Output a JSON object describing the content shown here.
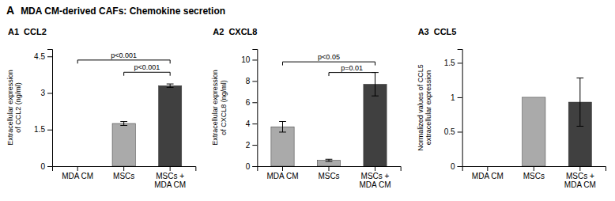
{
  "title": "MDA CM-derived CAFs: Chemokine secretion",
  "annotations": [
    "A"
  ],
  "chart_data": [
    {
      "type": "bar",
      "title": "A1",
      "subtitle": "CCL2",
      "categories": [
        "MDA CM",
        "MSCs",
        "MSCs +\nMDA CM"
      ],
      "values": [
        0.0,
        1.75,
        3.3
      ],
      "errors": [
        0.0,
        0.08,
        0.07
      ],
      "colors": [
        "#aaaaaa",
        "#aaaaaa",
        "#404040"
      ],
      "y_label": "Extracellular expression\nof CCL2 (ng/ml)",
      "ylim": [
        0,
        4.8
      ],
      "yticks": [
        0,
        1.5,
        3,
        4.5
      ],
      "annotations": [
        {
          "x1": 0,
          "x2": 2,
          "y": 4.35,
          "text": "p<0.001"
        },
        {
          "x1": 1,
          "x2": 2,
          "y": 3.85,
          "text": "p<0.001"
        }
      ]
    },
    {
      "type": "bar",
      "title": "A2",
      "subtitle": "CXCL8",
      "categories": [
        "MDA CM",
        "MSCs",
        "MSCs +\nMDA CM"
      ],
      "values": [
        3.7,
        0.55,
        7.7
      ],
      "errors": [
        0.5,
        0.1,
        1.1
      ],
      "colors": [
        "#aaaaaa",
        "#aaaaaa",
        "#404040"
      ],
      "y_label": "Extracellular expression\nof CXCL8 (ng/ml)",
      "ylim": [
        0,
        11
      ],
      "yticks": [
        0,
        2,
        4,
        6,
        8,
        10
      ],
      "annotations": [
        {
          "x1": 0,
          "x2": 2,
          "y": 9.8,
          "text": "p<0.05"
        },
        {
          "x1": 1,
          "x2": 2,
          "y": 8.8,
          "text": "p=0.01"
        }
      ]
    },
    {
      "type": "bar",
      "title": "A3",
      "subtitle": "CCL5",
      "categories": [
        "MDA CM",
        "MSCs",
        "MSCs +\nMDA CM"
      ],
      "values": [
        0.0,
        1.0,
        0.93
      ],
      "errors": [
        0.0,
        0.0,
        0.35
      ],
      "colors": [
        "#aaaaaa",
        "#aaaaaa",
        "#404040"
      ],
      "y_label": "Normalized values of CCL5\nextracellular expression",
      "ylim": [
        0,
        1.7
      ],
      "yticks": [
        0,
        0.5,
        1,
        1.5
      ],
      "annotations": []
    }
  ]
}
